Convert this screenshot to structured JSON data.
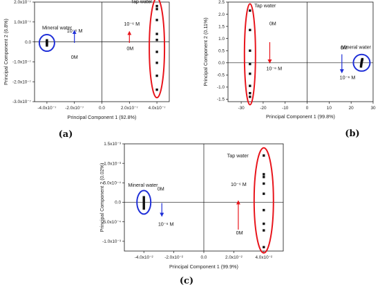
{
  "colors": {
    "tap_ellipse": "#e8141b",
    "mineral_ellipse": "#1f2fd8",
    "arrow_red": "#e8141b",
    "arrow_blue": "#1f2fd8",
    "axis": "#111111",
    "point": "#111111"
  },
  "chart_data": [
    {
      "panel": "(a)",
      "type": "scatter",
      "xlabel": "Principal Component 1 (92.8%)",
      "ylabel": "Principal Component 2 (6.8%)",
      "xlim": [
        -4.9e-07,
        4.9e-07
      ],
      "ylim": [
        -3e-07,
        2e-07
      ],
      "xticks": [
        {
          "v": -4e-07,
          "label": "-4.0x10⁻⁷"
        },
        {
          "v": -2e-07,
          "label": "-2.0x10⁻⁷"
        },
        {
          "v": 0,
          "label": "0.0"
        },
        {
          "v": 2e-07,
          "label": "2.0x10⁻⁷"
        },
        {
          "v": 4e-07,
          "label": "4.0x10⁻⁷"
        }
      ],
      "yticks": [
        {
          "v": 2e-07,
          "label": "2.0x10⁻⁷"
        },
        {
          "v": 1e-07,
          "label": "1.0x10⁻⁷"
        },
        {
          "v": 0,
          "label": "0.0"
        },
        {
          "v": -1e-07,
          "label": "-1.0x10⁻⁷"
        },
        {
          "v": -2e-07,
          "label": "-2.0x10⁻⁷"
        },
        {
          "v": -3e-07,
          "label": "-3.0x10⁻⁷"
        }
      ],
      "series": [
        {
          "name": "Mineral water",
          "x": [
            -4e-07,
            -4e-07,
            -4e-07,
            -4e-07,
            -4e-07,
            -4e-07,
            -4e-07
          ],
          "y": [
            8e-09,
            3e-09,
            -1e-09,
            -4e-09,
            -8e-09,
            -1.2e-08,
            -1.8e-08
          ]
        },
        {
          "name": "Tap water",
          "x": [
            4e-07,
            4e-07,
            4e-07,
            4e-07,
            4e-07,
            4e-07,
            4e-07,
            4e-07,
            4e-07
          ],
          "y": [
            1.8e-07,
            1.65e-07,
            1.1e-07,
            4e-08,
            1e-08,
            -5e-08,
            -1.05e-07,
            -1.7e-07,
            -2.4e-07
          ]
        }
      ],
      "annotations": {
        "mineral_label": "Mineral water",
        "tap_label": "Tap water",
        "red_top": "10⁻⁶ M",
        "red_bottom": "0M",
        "blue_top": "10⁻⁶ M",
        "blue_bottom": "0M"
      }
    },
    {
      "panel": "(b)",
      "type": "scatter",
      "xlabel": "Principal Component 1 (99.8%)",
      "ylabel": "Principal Component 2 (0.11%)",
      "xlim": [
        -36,
        30
      ],
      "ylim": [
        -1.6,
        2.5
      ],
      "xticks": [
        {
          "v": -30,
          "label": "-30"
        },
        {
          "v": -20,
          "label": "-20"
        },
        {
          "v": -10,
          "label": "-10"
        },
        {
          "v": 0,
          "label": "0"
        },
        {
          "v": 10,
          "label": "10"
        },
        {
          "v": 20,
          "label": "20"
        },
        {
          "v": 30,
          "label": "30"
        }
      ],
      "yticks": [
        {
          "v": 2.5,
          "label": "2.5"
        },
        {
          "v": 2.0,
          "label": "2.0"
        },
        {
          "v": 1.5,
          "label": "1.5"
        },
        {
          "v": 1.0,
          "label": "1.0"
        },
        {
          "v": 0.5,
          "label": "0.5"
        },
        {
          "v": 0.0,
          "label": "0.0"
        },
        {
          "v": -0.5,
          "label": "-0.5"
        },
        {
          "v": -1.0,
          "label": "-1.0"
        },
        {
          "v": -1.5,
          "label": "-1.5"
        }
      ],
      "series": [
        {
          "name": "Tap water",
          "x": [
            -26,
            -26,
            -26,
            -26,
            -26,
            -26,
            -26,
            -26
          ],
          "y": [
            2.15,
            1.35,
            0.5,
            -0.05,
            -0.45,
            -0.95,
            -1.25,
            -1.4
          ]
        },
        {
          "name": "Mineral water",
          "x": [
            24.5,
            24.6,
            24.7,
            24.8,
            24.9,
            25.0,
            25.1
          ],
          "y": [
            -0.15,
            -0.08,
            -0.02,
            0.03,
            0.08,
            0.12,
            0.15
          ]
        }
      ],
      "annotations": {
        "mineral_label": "Mineral water",
        "tap_label": "Tap water",
        "red_top": "0M",
        "red_bottom": "10⁻⁶ M",
        "blue_top": "0M",
        "blue_bottom": "10⁻⁶ M"
      }
    },
    {
      "panel": "(c)",
      "type": "scatter",
      "xlabel": "Principal Component 1 (99.9%)",
      "ylabel": "Principal Component 2 (0.02%)",
      "xlim": [
        -0.053,
        0.053
      ],
      "ylim": [
        -0.00125,
        0.0015
      ],
      "xticks": [
        {
          "v": -0.04,
          "label": "-4.0x10⁻²"
        },
        {
          "v": -0.02,
          "label": "-2.0x10⁻²"
        },
        {
          "v": 0,
          "label": "0.0"
        },
        {
          "v": 0.02,
          "label": "2.0x10⁻²"
        },
        {
          "v": 0.04,
          "label": "4.0x10⁻²"
        }
      ],
      "yticks": [
        {
          "v": 0.0015,
          "label": "1.5x10⁻³"
        },
        {
          "v": 0.001,
          "label": "1.0x10⁻³"
        },
        {
          "v": 0.0005,
          "label": "5.0x10⁻⁴"
        },
        {
          "v": 0,
          "label": "0.0"
        },
        {
          "v": -0.0005,
          "label": "-5.0x10⁻⁴"
        },
        {
          "v": -0.001,
          "label": "-1.0x10⁻³"
        }
      ],
      "series": [
        {
          "name": "Mineral water",
          "x": [
            -0.04,
            -0.04,
            -0.04,
            -0.04,
            -0.04,
            -0.04,
            -0.04,
            -0.04
          ],
          "y": [
            0.00013,
            8e-05,
            4e-05,
            0.0,
            -4e-05,
            -8e-05,
            -0.00012,
            -0.00016
          ]
        },
        {
          "name": "Tap water",
          "x": [
            0.04,
            0.04,
            0.04,
            0.04,
            0.04,
            0.04,
            0.04,
            0.04,
            0.04
          ],
          "y": [
            0.0012,
            0.00072,
            0.00065,
            0.00048,
            0.00022,
            -0.0002,
            -0.00055,
            -0.00072,
            -0.00115
          ]
        }
      ],
      "annotations": {
        "mineral_label": "Mineral water",
        "tap_label": "Tap water",
        "red_top": "10⁻⁶ M",
        "red_bottom": "0M",
        "blue_top": "0M",
        "blue_bottom": "10⁻⁶ M"
      }
    }
  ]
}
